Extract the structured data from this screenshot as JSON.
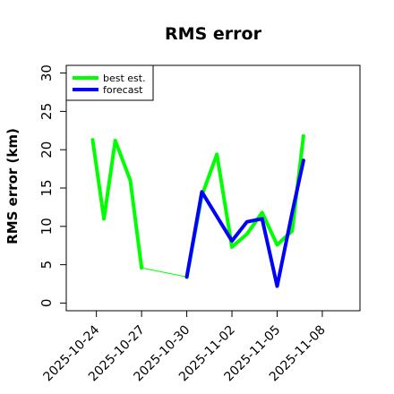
{
  "chart_data": {
    "type": "line",
    "title": "RMS error",
    "xlabel": "",
    "ylabel": "RMS error (km)",
    "ylim": [
      -1,
      31
    ],
    "xlim": [
      "2025-10-22 00:00",
      "2025-11-10 12:00"
    ],
    "grid": false,
    "legend_position": "top-left",
    "x_ticks": [
      {
        "label": "2025-10-24",
        "value": "2025-10-24",
        "color": "#000000"
      },
      {
        "label": "2025-10-27",
        "value": "2025-10-27",
        "color": "#000000"
      },
      {
        "label": "2025-10-30",
        "value": "2025-10-30",
        "color": "#228B22"
      },
      {
        "label": "2025-11-02",
        "value": "2025-11-02",
        "color": "#000000"
      },
      {
        "label": "2025-11-05",
        "value": "2025-11-05",
        "color": "#000000"
      },
      {
        "label": "2025-11-08",
        "value": "2025-11-08",
        "color": "#000000"
      }
    ],
    "y_ticks": [
      0,
      5,
      10,
      15,
      20,
      25,
      30
    ],
    "series": [
      {
        "name": "best est.",
        "color": "#00ff00",
        "segments": [
          {
            "width": "thick",
            "points": [
              {
                "x": "2025-10-23 18:00",
                "y": 21.3
              },
              {
                "x": "2025-10-24 12:00",
                "y": 11.0
              },
              {
                "x": "2025-10-25 06:00",
                "y": 21.2
              },
              {
                "x": "2025-10-26 06:00",
                "y": 16.0
              },
              {
                "x": "2025-10-27 00:00",
                "y": 4.6
              }
            ]
          },
          {
            "width": "thin",
            "points": [
              {
                "x": "2025-10-27 00:00",
                "y": 4.6
              },
              {
                "x": "2025-10-30 00:00",
                "y": 3.4
              }
            ]
          },
          {
            "width": "thick",
            "points": [
              {
                "x": "2025-10-30 00:00",
                "y": 3.4
              },
              {
                "x": "2025-10-31 00:00",
                "y": 14.0
              },
              {
                "x": "2025-11-01 00:00",
                "y": 19.4
              },
              {
                "x": "2025-11-02 00:00",
                "y": 7.3
              },
              {
                "x": "2025-11-03 00:00",
                "y": 9.0
              },
              {
                "x": "2025-11-04 00:00",
                "y": 11.8
              },
              {
                "x": "2025-11-05 00:00",
                "y": 7.6
              },
              {
                "x": "2025-11-06 00:00",
                "y": 9.4
              },
              {
                "x": "2025-11-06 18:00",
                "y": 21.8
              }
            ]
          }
        ]
      },
      {
        "name": "forecast",
        "color": "#0000ff",
        "segments": [
          {
            "width": "thick",
            "points": [
              {
                "x": "2025-10-30 00:00",
                "y": 3.4
              },
              {
                "x": "2025-10-31 00:00",
                "y": 14.5
              },
              {
                "x": "2025-11-02 00:00",
                "y": 8.1
              },
              {
                "x": "2025-11-03 00:00",
                "y": 10.6
              },
              {
                "x": "2025-11-04 00:00",
                "y": 11.0
              },
              {
                "x": "2025-11-05 00:00",
                "y": 2.2
              },
              {
                "x": "2025-11-06 00:00",
                "y": 11.8
              },
              {
                "x": "2025-11-06 18:00",
                "y": 18.6
              }
            ]
          }
        ]
      }
    ]
  }
}
